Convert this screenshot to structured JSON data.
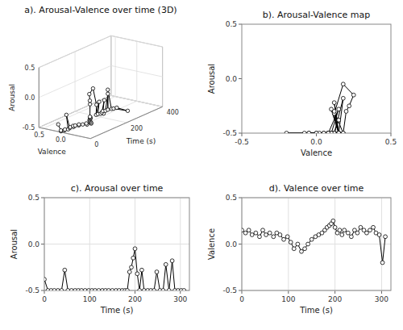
{
  "chart_data": [
    {
      "type": "line3d",
      "title": "a). Arousal-Valence over time (3D)",
      "xlabel": "Valence",
      "ylabel": "Time (s)",
      "zlabel": "Arousal",
      "x": [
        0.15,
        0.12,
        0.15,
        0.1,
        0.12,
        0.08,
        0.15,
        0.1,
        0.12,
        0.08,
        0.12,
        0.1,
        0.05,
        0.08,
        0.02,
        -0.05,
        0.0,
        -0.08,
        -0.05,
        0.0,
        0.05,
        0.08,
        0.1,
        0.12,
        0.15,
        0.18,
        0.2,
        0.22,
        0.25,
        0.18,
        0.12,
        0.15,
        0.1,
        0.15,
        0.12,
        0.08,
        0.15,
        0.12,
        0.18,
        0.15,
        0.12,
        0.15,
        0.18,
        0.12,
        0.1,
        -0.2,
        0.08
      ],
      "y": [
        0,
        8,
        15,
        22,
        30,
        38,
        45,
        52,
        60,
        68,
        75,
        82,
        90,
        98,
        105,
        112,
        120,
        128,
        135,
        142,
        150,
        158,
        165,
        172,
        178,
        183,
        188,
        192,
        196,
        200,
        205,
        210,
        215,
        220,
        228,
        235,
        242,
        248,
        255,
        262,
        268,
        275,
        282,
        288,
        295,
        302,
        308
      ],
      "z": [
        -0.38,
        -0.5,
        -0.5,
        -0.5,
        -0.5,
        -0.5,
        -0.28,
        -0.5,
        -0.5,
        -0.5,
        -0.5,
        -0.5,
        -0.5,
        -0.5,
        -0.5,
        -0.5,
        -0.5,
        -0.5,
        -0.5,
        -0.5,
        -0.5,
        -0.5,
        -0.5,
        -0.5,
        -0.5,
        -0.5,
        -0.3,
        -0.25,
        -0.15,
        -0.05,
        -0.32,
        -0.5,
        -0.28,
        -0.5,
        -0.5,
        -0.5,
        -0.5,
        -0.3,
        -0.5,
        -0.5,
        -0.22,
        -0.5,
        -0.18,
        -0.5,
        -0.5,
        -0.5,
        -0.5
      ],
      "xlim": [
        0.6,
        -0.6
      ],
      "ylim": [
        0,
        400
      ],
      "zlim": [
        -0.5,
        0.5
      ],
      "xticks": [
        0.5,
        {
          "value": 0,
          "label": "0.0"
        }
      ],
      "yticks": [
        0,
        200,
        400
      ],
      "zticks": [
        -0.5,
        {
          "value": 0,
          "label": "0.0"
        },
        0.5
      ],
      "grid": true,
      "color": "black",
      "marker": "circle"
    },
    {
      "type": "line",
      "title": "b). Arousal-Valence map",
      "xlabel": "Valence",
      "ylabel": "Arousal",
      "x": [
        0.15,
        0.12,
        0.15,
        0.1,
        0.12,
        0.08,
        0.15,
        0.1,
        0.12,
        0.08,
        0.12,
        0.1,
        0.05,
        0.08,
        0.02,
        -0.05,
        0.0,
        -0.08,
        -0.05,
        0.0,
        0.05,
        0.08,
        0.1,
        0.12,
        0.15,
        0.18,
        0.2,
        0.22,
        0.25,
        0.18,
        0.12,
        0.15,
        0.1,
        0.15,
        0.12,
        0.08,
        0.15,
        0.12,
        0.18,
        0.15,
        0.12,
        0.15,
        0.18,
        0.12,
        0.1,
        -0.2,
        0.08
      ],
      "values": [
        -0.38,
        -0.5,
        -0.5,
        -0.5,
        -0.5,
        -0.5,
        -0.28,
        -0.5,
        -0.5,
        -0.5,
        -0.5,
        -0.5,
        -0.5,
        -0.5,
        -0.5,
        -0.5,
        -0.5,
        -0.5,
        -0.5,
        -0.5,
        -0.5,
        -0.5,
        -0.5,
        -0.5,
        -0.5,
        -0.5,
        -0.3,
        -0.25,
        -0.15,
        -0.05,
        -0.32,
        -0.5,
        -0.28,
        -0.5,
        -0.5,
        -0.5,
        -0.5,
        -0.3,
        -0.5,
        -0.5,
        -0.22,
        -0.5,
        -0.18,
        -0.5,
        -0.5,
        -0.5,
        -0.5
      ],
      "xlim": [
        -0.5,
        0.5
      ],
      "ylim": [
        -0.5,
        0.5
      ],
      "xticks": [
        -0.5,
        {
          "value": 0,
          "label": "0.0"
        },
        0.5
      ],
      "yticks": [
        -0.5,
        {
          "value": 0,
          "label": "0.0"
        },
        0.5
      ],
      "grid": false,
      "color": "black",
      "marker": "circle"
    },
    {
      "type": "line",
      "title": "c). Arousal over time",
      "xlabel": "Time (s)",
      "ylabel": "Arousal",
      "x": [
        0,
        8,
        15,
        22,
        30,
        38,
        45,
        52,
        60,
        68,
        75,
        82,
        90,
        98,
        105,
        112,
        120,
        128,
        135,
        142,
        150,
        158,
        165,
        172,
        178,
        183,
        188,
        192,
        196,
        200,
        205,
        210,
        215,
        220,
        228,
        235,
        242,
        248,
        255,
        262,
        268,
        275,
        282,
        288,
        295,
        302,
        308
      ],
      "values": [
        -0.38,
        -0.5,
        -0.5,
        -0.5,
        -0.5,
        -0.5,
        -0.28,
        -0.5,
        -0.5,
        -0.5,
        -0.5,
        -0.5,
        -0.5,
        -0.5,
        -0.5,
        -0.5,
        -0.5,
        -0.5,
        -0.5,
        -0.5,
        -0.5,
        -0.5,
        -0.5,
        -0.5,
        -0.5,
        -0.5,
        -0.3,
        -0.25,
        -0.15,
        -0.05,
        -0.32,
        -0.5,
        -0.28,
        -0.5,
        -0.5,
        -0.5,
        -0.5,
        -0.3,
        -0.5,
        -0.5,
        -0.22,
        -0.5,
        -0.18,
        -0.5,
        -0.5,
        -0.5,
        -0.5
      ],
      "xlim": [
        0,
        320
      ],
      "ylim": [
        -0.5,
        0.5
      ],
      "xticks": [
        0,
        100,
        200,
        300
      ],
      "yticks": [
        -0.5,
        {
          "value": 0.0,
          "label": "0.0"
        },
        0.5
      ],
      "grid": true,
      "color": "black",
      "marker": "circle"
    },
    {
      "type": "line",
      "title": "d). Valence over time",
      "xlabel": "Time (s)",
      "ylabel": "Valence",
      "x": [
        0,
        8,
        15,
        22,
        30,
        38,
        45,
        52,
        60,
        68,
        75,
        82,
        90,
        98,
        105,
        112,
        120,
        128,
        135,
        142,
        150,
        158,
        165,
        172,
        178,
        183,
        188,
        192,
        196,
        200,
        205,
        210,
        215,
        220,
        228,
        235,
        242,
        248,
        255,
        262,
        268,
        275,
        282,
        288,
        295,
        302,
        308
      ],
      "values": [
        0.15,
        0.12,
        0.15,
        0.1,
        0.12,
        0.08,
        0.15,
        0.1,
        0.12,
        0.08,
        0.12,
        0.1,
        0.05,
        0.08,
        0.02,
        -0.05,
        0.0,
        -0.08,
        -0.05,
        0.0,
        0.05,
        0.08,
        0.1,
        0.12,
        0.15,
        0.18,
        0.2,
        0.22,
        0.25,
        0.18,
        0.12,
        0.15,
        0.1,
        0.15,
        0.12,
        0.08,
        0.15,
        0.12,
        0.18,
        0.15,
        0.12,
        0.15,
        0.18,
        0.12,
        0.1,
        -0.2,
        0.08
      ],
      "xlim": [
        0,
        320
      ],
      "ylim": [
        -0.5,
        0.5
      ],
      "xticks": [
        0,
        100,
        200,
        300
      ],
      "yticks": [
        -0.5,
        {
          "value": 0.0,
          "label": "0.0"
        },
        0.5
      ],
      "grid": true,
      "color": "black",
      "marker": "circle"
    }
  ]
}
